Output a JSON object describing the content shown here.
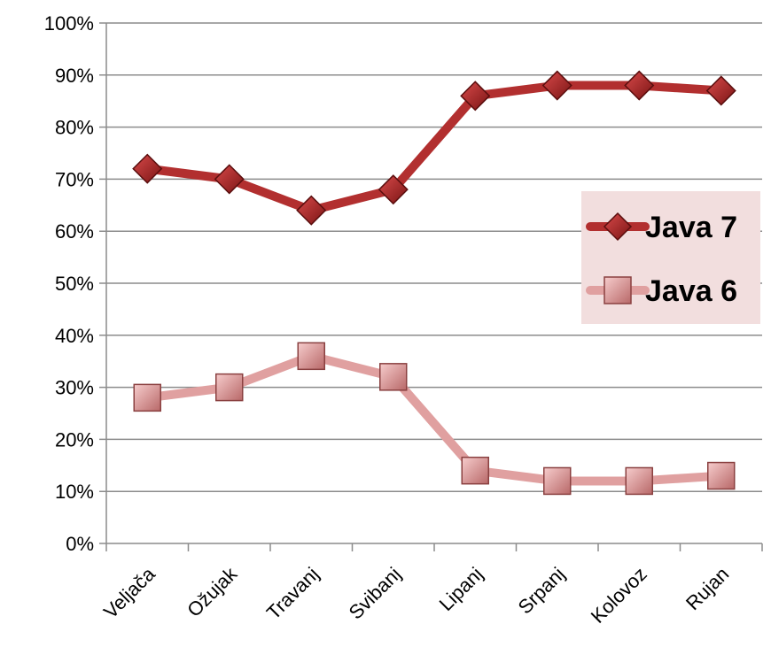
{
  "chart_data": {
    "type": "line",
    "categories": [
      "Veljača",
      "Ožujak",
      "Travanj",
      "Svibanj",
      "Lipanj",
      "Srpanj",
      "Kolovoz",
      "Rujan"
    ],
    "series": [
      {
        "name": "Java 7",
        "values": [
          72,
          70,
          64,
          68,
          86,
          88,
          88,
          87
        ],
        "color": "#b22f2f",
        "marker": "diamond"
      },
      {
        "name": "Java 6",
        "values": [
          28,
          30,
          36,
          32,
          14,
          12,
          12,
          13
        ],
        "color": "#e0a0a0",
        "marker": "square"
      }
    ],
    "ylim": [
      0,
      100
    ],
    "yticks": [
      "0%",
      "10%",
      "20%",
      "30%",
      "40%",
      "50%",
      "60%",
      "70%",
      "80%",
      "90%",
      "100%"
    ],
    "grid": true,
    "legend_position": "right",
    "legend_background": "#f2dede"
  }
}
